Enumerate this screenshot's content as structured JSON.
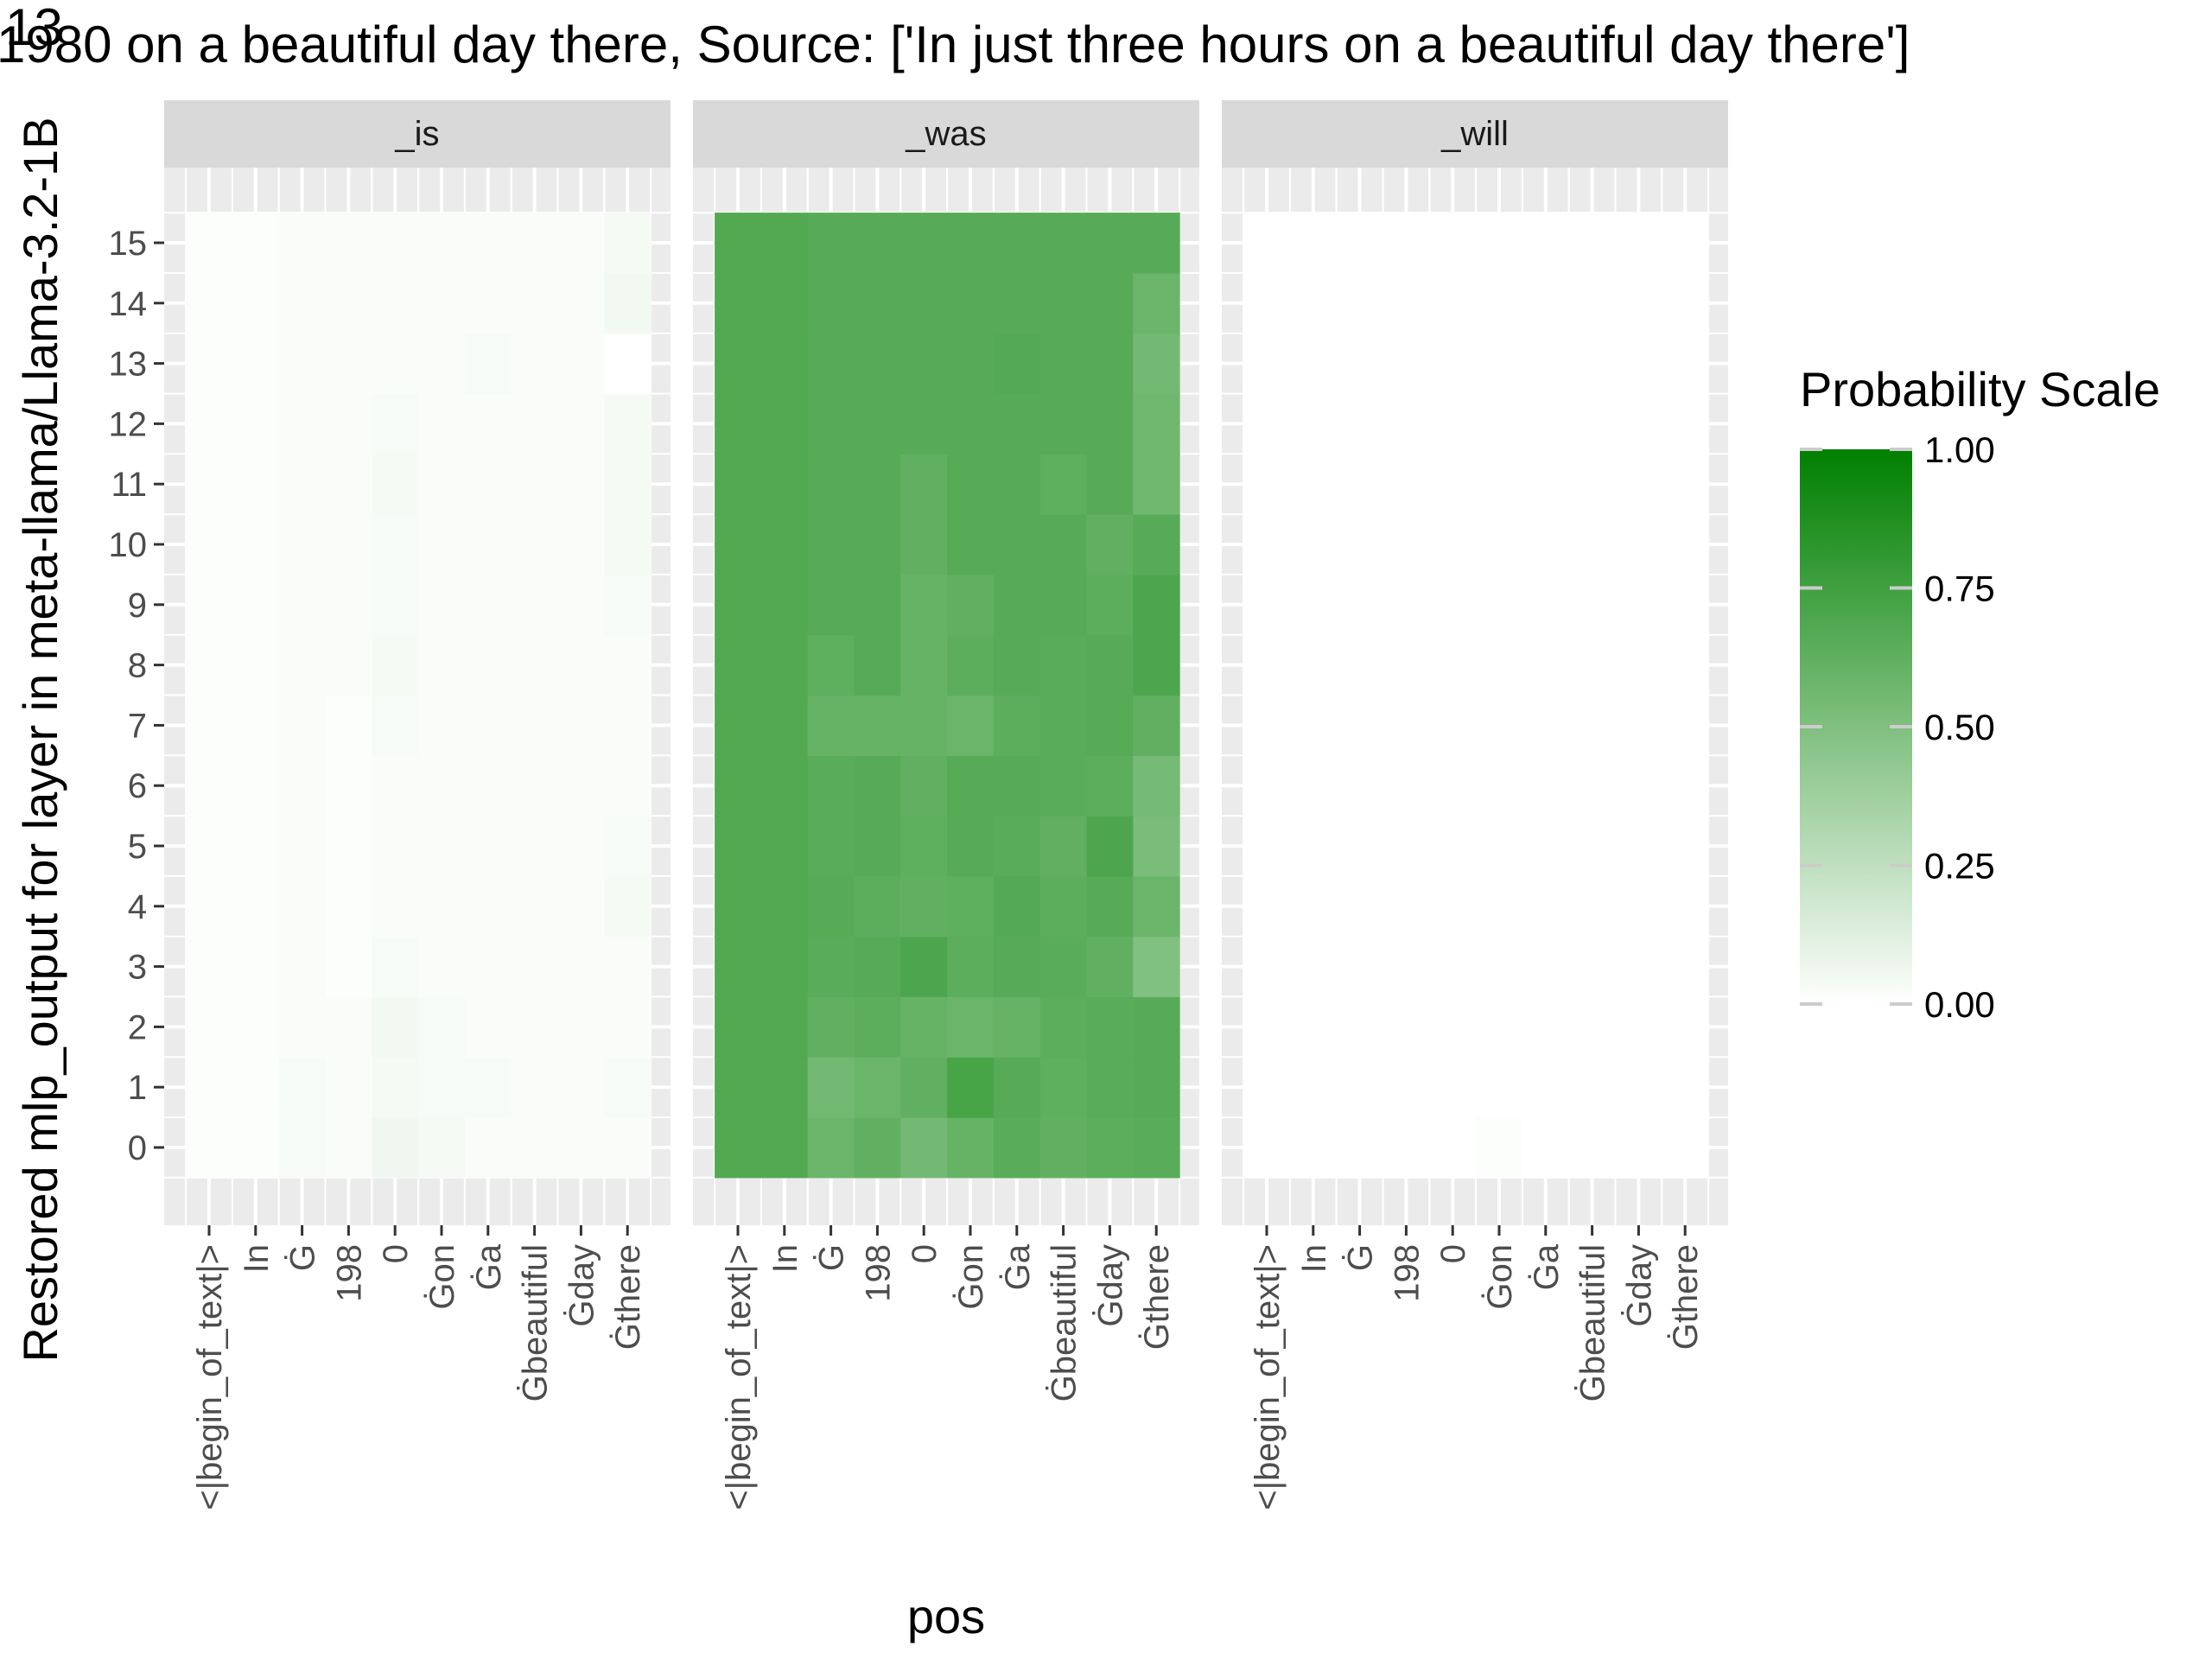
{
  "chart_data": {
    "type": "heatmap",
    "title": "1980 on a beautiful day there, Source: ['In just three hours on a beautiful day there']",
    "title_overprint": "13",
    "xlabel": "pos",
    "ylabel": "Restored mlp_output for layer in meta-llama/Llama-3.2-1B",
    "x_categories": [
      "<|begin_of_text|>",
      "In",
      "Ġ",
      "198",
      "0",
      "Ġon",
      "Ġa",
      "Ġbeautiful",
      "Ġday",
      "Ġthere"
    ],
    "y_categories": [
      "0",
      "1",
      "2",
      "3",
      "4",
      "5",
      "6",
      "7",
      "8",
      "9",
      "10",
      "11",
      "12",
      "13",
      "14",
      "15"
    ],
    "facets": [
      "_is",
      "_was",
      "_will"
    ],
    "legend": {
      "title": "Probability Scale",
      "ticks": [
        "0.00",
        "0.25",
        "0.50",
        "0.75",
        "1.00"
      ],
      "low_color": "#ffffff",
      "high_color": "#008000",
      "range": [
        0,
        1
      ]
    },
    "grid": true,
    "legend_position": "right",
    "values": {
      "_is": [
        [
          0.01,
          0.01,
          0.03,
          0.02,
          0.06,
          0.04,
          0.02,
          0.02,
          0.02,
          0.02
        ],
        [
          0.01,
          0.01,
          0.03,
          0.02,
          0.04,
          0.03,
          0.03,
          0.02,
          0.02,
          0.03
        ],
        [
          0.01,
          0.01,
          0.02,
          0.02,
          0.05,
          0.03,
          0.02,
          0.02,
          0.02,
          0.02
        ],
        [
          0.01,
          0.01,
          0.02,
          0.01,
          0.03,
          0.02,
          0.02,
          0.02,
          0.02,
          0.02
        ],
        [
          0.01,
          0.01,
          0.02,
          0.01,
          0.02,
          0.02,
          0.02,
          0.02,
          0.02,
          0.04
        ],
        [
          0.01,
          0.01,
          0.02,
          0.01,
          0.02,
          0.02,
          0.02,
          0.02,
          0.02,
          0.03
        ],
        [
          0.01,
          0.01,
          0.02,
          0.01,
          0.02,
          0.02,
          0.02,
          0.02,
          0.02,
          0.02
        ],
        [
          0.01,
          0.01,
          0.02,
          0.01,
          0.03,
          0.02,
          0.02,
          0.02,
          0.02,
          0.02
        ],
        [
          0.01,
          0.01,
          0.02,
          0.02,
          0.04,
          0.02,
          0.02,
          0.02,
          0.02,
          0.02
        ],
        [
          0.01,
          0.01,
          0.02,
          0.02,
          0.03,
          0.02,
          0.02,
          0.02,
          0.02,
          0.03
        ],
        [
          0.01,
          0.01,
          0.02,
          0.02,
          0.03,
          0.02,
          0.02,
          0.02,
          0.02,
          0.04
        ],
        [
          0.01,
          0.01,
          0.02,
          0.02,
          0.04,
          0.02,
          0.02,
          0.02,
          0.02,
          0.04
        ],
        [
          0.01,
          0.01,
          0.02,
          0.02,
          0.03,
          0.02,
          0.02,
          0.02,
          0.02,
          0.04
        ],
        [
          0.01,
          0.01,
          0.02,
          0.02,
          0.02,
          0.02,
          0.03,
          0.02,
          0.02,
          0.0
        ],
        [
          0.01,
          0.01,
          0.02,
          0.02,
          0.02,
          0.02,
          0.02,
          0.02,
          0.02,
          0.05
        ],
        [
          0.01,
          0.01,
          0.02,
          0.02,
          0.02,
          0.02,
          0.02,
          0.02,
          0.02,
          0.04
        ]
      ],
      "_was": [
        [
          0.68,
          0.68,
          0.58,
          0.62,
          0.55,
          0.6,
          0.65,
          0.62,
          0.64,
          0.65
        ],
        [
          0.68,
          0.68,
          0.55,
          0.58,
          0.62,
          0.72,
          0.66,
          0.63,
          0.65,
          0.66
        ],
        [
          0.68,
          0.68,
          0.62,
          0.64,
          0.6,
          0.58,
          0.6,
          0.64,
          0.65,
          0.66
        ],
        [
          0.68,
          0.68,
          0.65,
          0.66,
          0.7,
          0.64,
          0.66,
          0.65,
          0.62,
          0.5
        ],
        [
          0.68,
          0.68,
          0.66,
          0.64,
          0.62,
          0.63,
          0.67,
          0.64,
          0.66,
          0.58
        ],
        [
          0.68,
          0.68,
          0.65,
          0.66,
          0.63,
          0.66,
          0.65,
          0.62,
          0.7,
          0.52
        ],
        [
          0.68,
          0.68,
          0.65,
          0.66,
          0.62,
          0.66,
          0.66,
          0.65,
          0.64,
          0.54
        ],
        [
          0.68,
          0.68,
          0.6,
          0.6,
          0.6,
          0.58,
          0.64,
          0.65,
          0.66,
          0.62
        ],
        [
          0.68,
          0.68,
          0.63,
          0.66,
          0.6,
          0.64,
          0.66,
          0.65,
          0.66,
          0.7
        ],
        [
          0.68,
          0.68,
          0.66,
          0.66,
          0.6,
          0.62,
          0.66,
          0.66,
          0.64,
          0.7
        ],
        [
          0.68,
          0.68,
          0.66,
          0.66,
          0.62,
          0.66,
          0.66,
          0.66,
          0.62,
          0.66
        ],
        [
          0.68,
          0.68,
          0.66,
          0.66,
          0.62,
          0.66,
          0.66,
          0.63,
          0.66,
          0.56
        ],
        [
          0.68,
          0.68,
          0.66,
          0.66,
          0.66,
          0.66,
          0.66,
          0.66,
          0.66,
          0.56
        ],
        [
          0.68,
          0.68,
          0.66,
          0.66,
          0.66,
          0.66,
          0.67,
          0.66,
          0.66,
          0.55
        ],
        [
          0.68,
          0.68,
          0.66,
          0.66,
          0.66,
          0.66,
          0.66,
          0.66,
          0.66,
          0.58
        ],
        [
          0.68,
          0.68,
          0.66,
          0.66,
          0.66,
          0.66,
          0.66,
          0.66,
          0.66,
          0.66
        ]
      ],
      "_will": [
        [
          0.0,
          0.0,
          0.0,
          0.0,
          0.0,
          0.01,
          0.0,
          0.0,
          0.0,
          0.0
        ],
        [
          0.0,
          0.0,
          0.0,
          0.0,
          0.0,
          0.0,
          0.0,
          0.0,
          0.0,
          0.0
        ],
        [
          0.0,
          0.0,
          0.0,
          0.0,
          0.0,
          0.0,
          0.0,
          0.0,
          0.0,
          0.0
        ],
        [
          0.0,
          0.0,
          0.0,
          0.0,
          0.0,
          0.0,
          0.0,
          0.0,
          0.0,
          0.0
        ],
        [
          0.0,
          0.0,
          0.0,
          0.0,
          0.0,
          0.0,
          0.0,
          0.0,
          0.0,
          0.0
        ],
        [
          0.0,
          0.0,
          0.0,
          0.0,
          0.0,
          0.0,
          0.0,
          0.0,
          0.0,
          0.0
        ],
        [
          0.0,
          0.0,
          0.0,
          0.0,
          0.0,
          0.0,
          0.0,
          0.0,
          0.0,
          0.0
        ],
        [
          0.0,
          0.0,
          0.0,
          0.0,
          0.0,
          0.0,
          0.0,
          0.0,
          0.0,
          0.0
        ],
        [
          0.0,
          0.0,
          0.0,
          0.0,
          0.0,
          0.0,
          0.0,
          0.0,
          0.0,
          0.0
        ],
        [
          0.0,
          0.0,
          0.0,
          0.0,
          0.0,
          0.0,
          0.0,
          0.0,
          0.0,
          0.0
        ],
        [
          0.0,
          0.0,
          0.0,
          0.0,
          0.0,
          0.0,
          0.0,
          0.0,
          0.0,
          0.0
        ],
        [
          0.0,
          0.0,
          0.0,
          0.0,
          0.0,
          0.0,
          0.0,
          0.0,
          0.0,
          0.0
        ],
        [
          0.0,
          0.0,
          0.0,
          0.0,
          0.0,
          0.0,
          0.0,
          0.0,
          0.0,
          0.0
        ],
        [
          0.0,
          0.0,
          0.0,
          0.0,
          0.0,
          0.0,
          0.0,
          0.0,
          0.0,
          0.0
        ],
        [
          0.0,
          0.0,
          0.0,
          0.0,
          0.0,
          0.0,
          0.0,
          0.0,
          0.0,
          0.0
        ],
        [
          0.0,
          0.0,
          0.0,
          0.0,
          0.0,
          0.0,
          0.0,
          0.0,
          0.0,
          0.0
        ]
      ]
    }
  }
}
